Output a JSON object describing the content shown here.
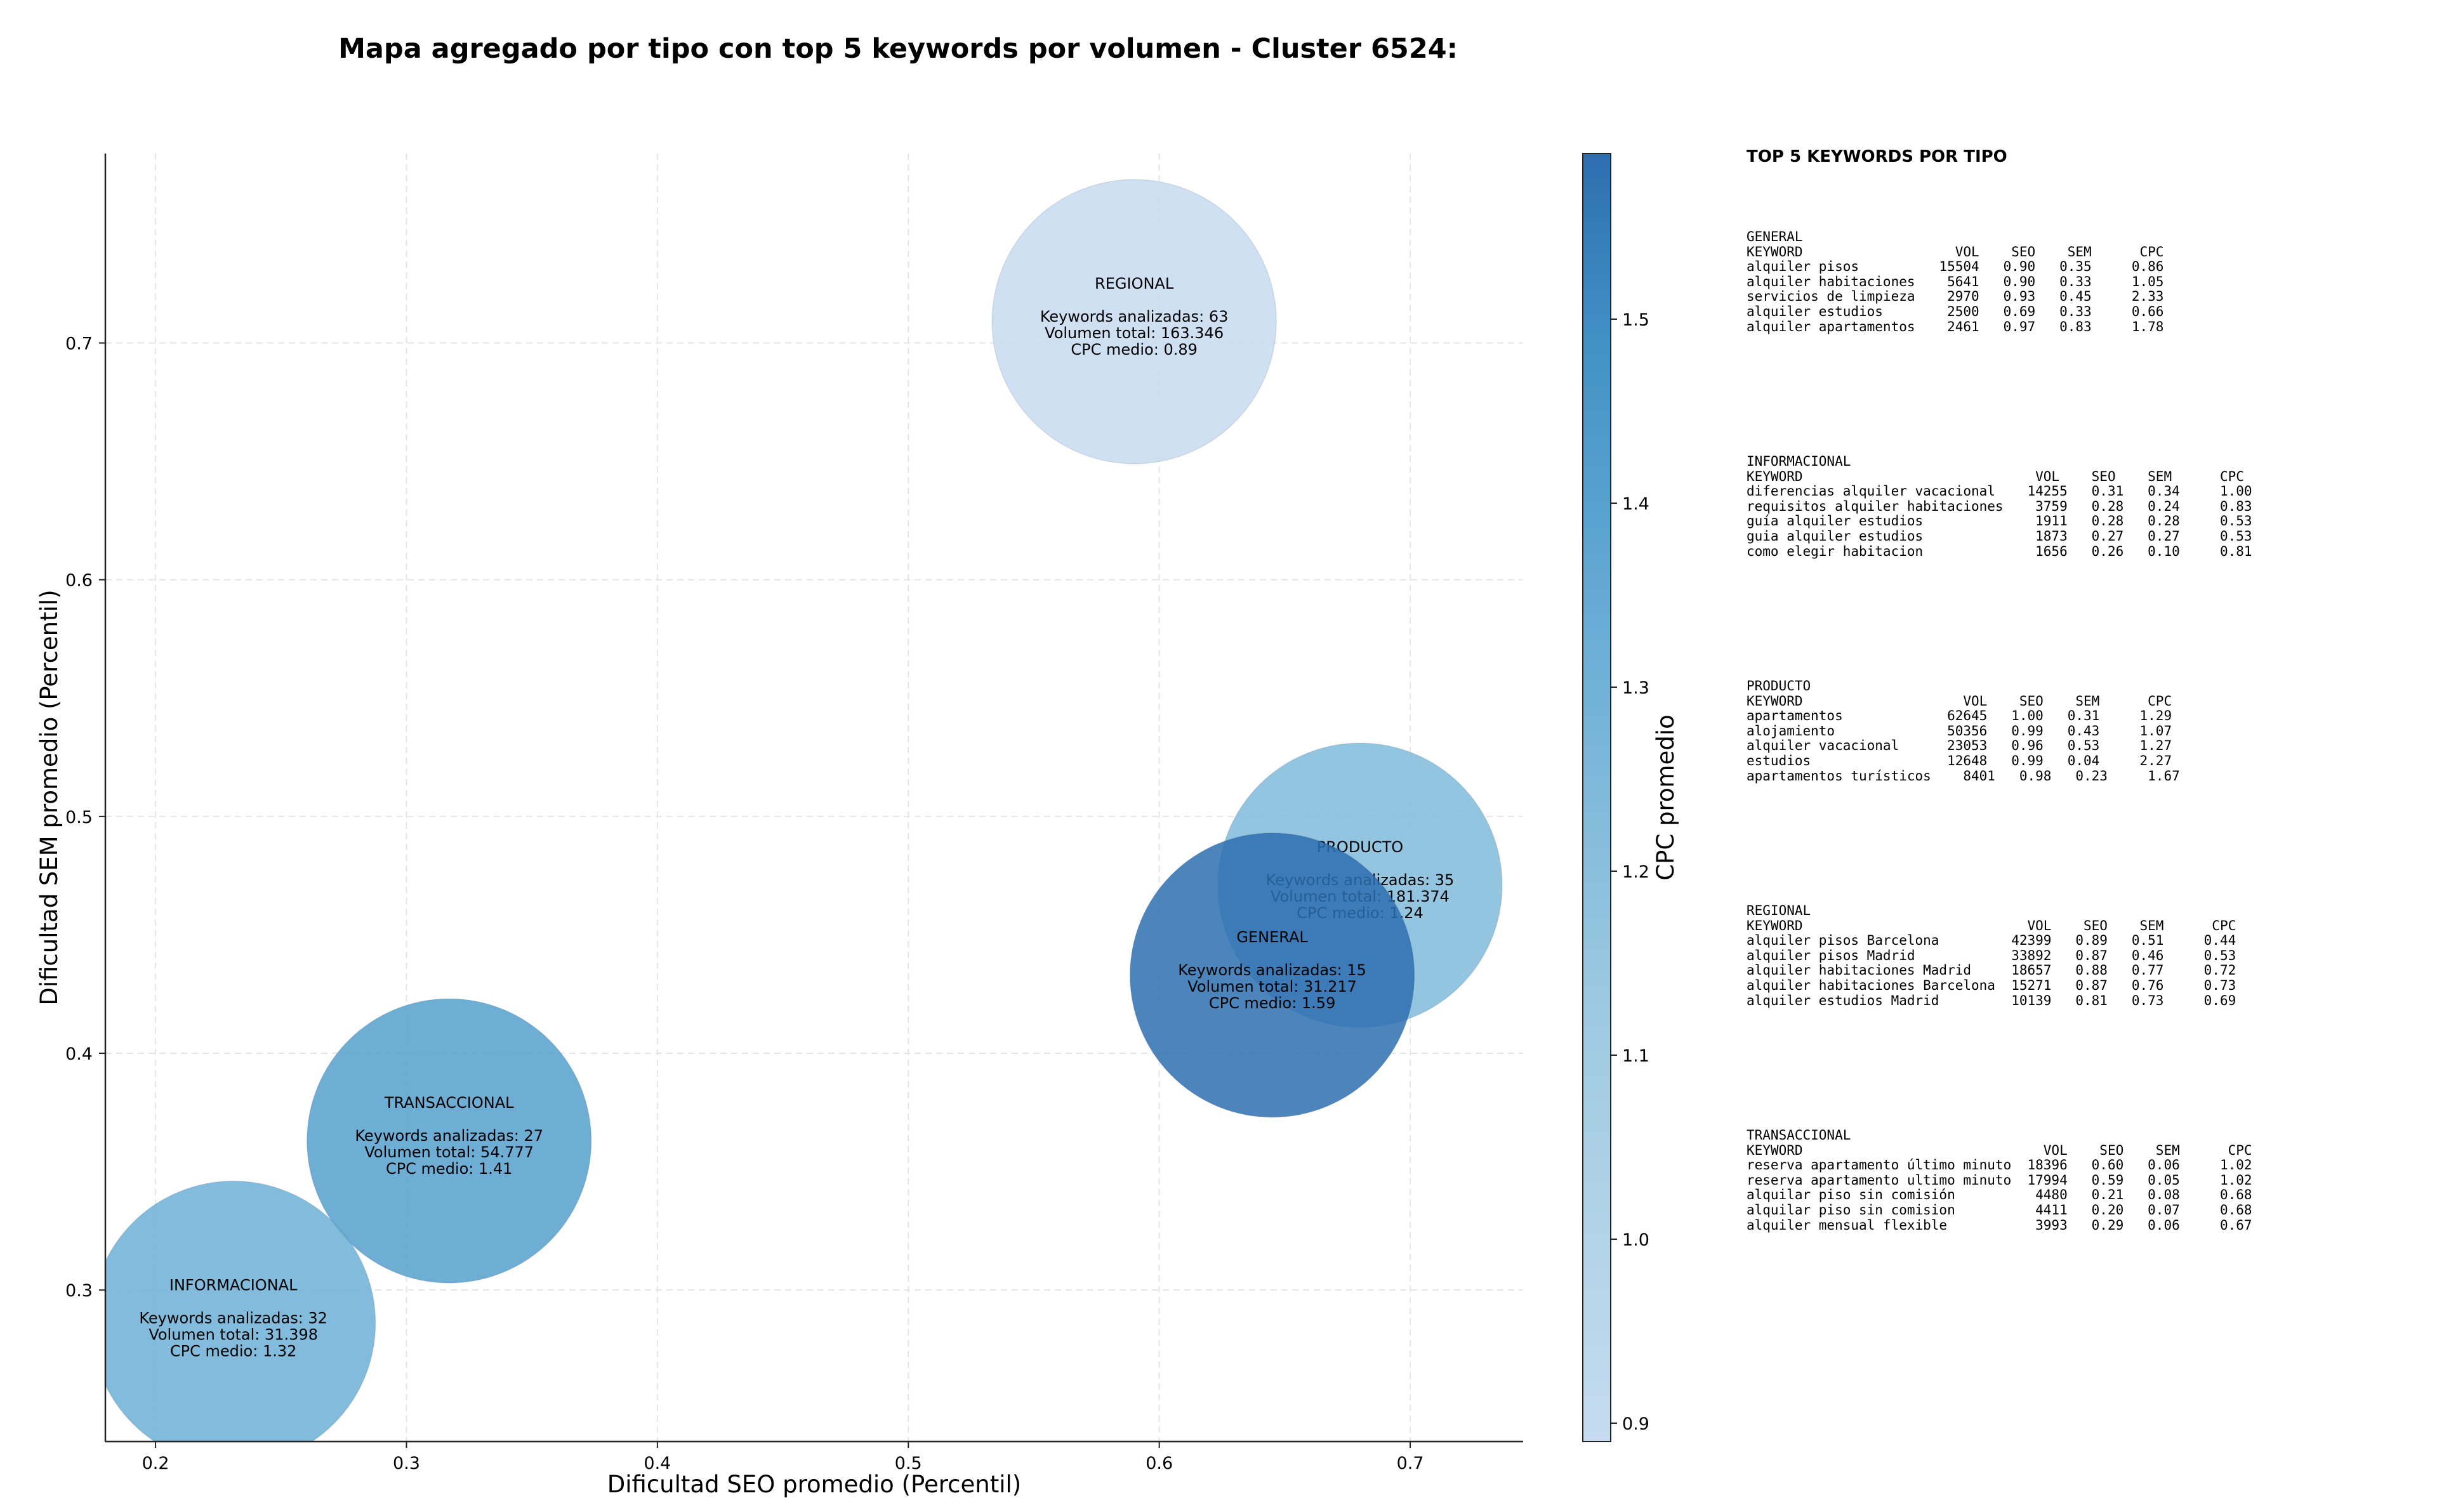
{
  "title": "Mapa agregado por tipo con top 5 keywords por volumen - Cluster 6524:",
  "chart_data": {
    "type": "bubble",
    "xlabel": "Dificultad SEO promedio (Percentil)",
    "ylabel": "Dificultad SEM promedio (Percentil)",
    "colorbar_label": "CPC promedio",
    "xlim": [
      0.18,
      0.745
    ],
    "ylim": [
      0.236,
      0.78
    ],
    "xticks": [
      "0.2",
      "0.3",
      "0.4",
      "0.5",
      "0.6",
      "0.7"
    ],
    "yticks": [
      "0.3",
      "0.4",
      "0.5",
      "0.6",
      "0.7"
    ],
    "colorbar_ticks": [
      "0.9",
      "1.0",
      "1.1",
      "1.2",
      "1.3",
      "1.4",
      "1.5"
    ],
    "colorbar_range": [
      0.89,
      1.59
    ],
    "grid": true,
    "points": [
      {
        "label": "REGIONAL",
        "x": 0.59,
        "y": 0.709,
        "keywords_line": "Keywords analizadas: 63",
        "volume_line": "Volumen total: 163.346",
        "cpc_line": "CPC medio: 0.89",
        "cpc": 0.89
      },
      {
        "label": "PRODUCTO",
        "x": 0.68,
        "y": 0.471,
        "keywords_line": "Keywords analizadas: 35",
        "volume_line": "Volumen total: 181.374",
        "cpc_line": "CPC medio: 1.24",
        "cpc": 1.24
      },
      {
        "label": "GENERAL",
        "x": 0.645,
        "y": 0.433,
        "keywords_line": "Keywords analizadas: 15",
        "volume_line": "Volumen total: 31.217",
        "cpc_line": "CPC medio: 1.59",
        "cpc": 1.59
      },
      {
        "label": "TRANSACCIONAL",
        "x": 0.317,
        "y": 0.363,
        "keywords_line": "Keywords analizadas: 27",
        "volume_line": "Volumen total: 54.777",
        "cpc_line": "CPC medio: 1.41",
        "cpc": 1.41
      },
      {
        "label": "INFORMACIONAL",
        "x": 0.231,
        "y": 0.286,
        "keywords_line": "Keywords analizadas: 32",
        "volume_line": "Volumen total: 31.398",
        "cpc_line": "CPC medio: 1.32",
        "cpc": 1.32
      }
    ]
  },
  "keyword_panel": {
    "title": "TOP 5 KEYWORDS POR TIPO",
    "blocks": [
      {
        "name": "GENERAL",
        "lines": [
          "GENERAL",
          "KEYWORD                   VOL    SEO    SEM      CPC",
          "alquiler pisos          15504   0.90   0.35     0.86",
          "alquiler habitaciones    5641   0.90   0.33     1.05",
          "servicios de limpieza    2970   0.93   0.45     2.33",
          "alquiler estudios        2500   0.69   0.33     0.66",
          "alquiler apartamentos    2461   0.97   0.83     1.78"
        ]
      },
      {
        "name": "INFORMACIONAL",
        "lines": [
          "INFORMACIONAL",
          "KEYWORD                             VOL    SEO    SEM      CPC",
          "diferencias alquiler vacacional    14255   0.31   0.34     1.00",
          "requisitos alquiler habitaciones    3759   0.28   0.24     0.83",
          "guía alquiler estudios              1911   0.28   0.28     0.53",
          "guia alquiler estudios              1873   0.27   0.27     0.53",
          "como elegir habitacion              1656   0.26   0.10     0.81"
        ]
      },
      {
        "name": "PRODUCTO",
        "lines": [
          "PRODUCTO",
          "KEYWORD                    VOL    SEO    SEM      CPC",
          "apartamentos             62645   1.00   0.31     1.29",
          "alojamiento              50356   0.99   0.43     1.07",
          "alquiler vacacional      23053   0.96   0.53     1.27",
          "estudios                 12648   0.99   0.04     2.27",
          "apartamentos turísticos    8401   0.98   0.23     1.67"
        ]
      },
      {
        "name": "REGIONAL",
        "lines": [
          "REGIONAL",
          "KEYWORD                            VOL    SEO    SEM      CPC",
          "alquiler pisos Barcelona         42399   0.89   0.51     0.44",
          "alquiler pisos Madrid            33892   0.87   0.46     0.53",
          "alquiler habitaciones Madrid     18657   0.88   0.77     0.72",
          "alquiler habitaciones Barcelona  15271   0.87   0.76     0.73",
          "alquiler estudios Madrid         10139   0.81   0.73     0.69"
        ]
      },
      {
        "name": "TRANSACCIONAL",
        "lines": [
          "TRANSACCIONAL",
          "KEYWORD                              VOL    SEO    SEM      CPC",
          "reserva apartamento último minuto  18396   0.60   0.06     1.02",
          "reserva apartamento ultimo minuto  17994   0.59   0.05     1.02",
          "alquilar piso sin comisión          4480   0.21   0.08     0.68",
          "alquilar piso sin comision          4411   0.20   0.07     0.68",
          "alquiler mensual flexible           3993   0.29   0.06     0.67"
        ]
      }
    ]
  }
}
